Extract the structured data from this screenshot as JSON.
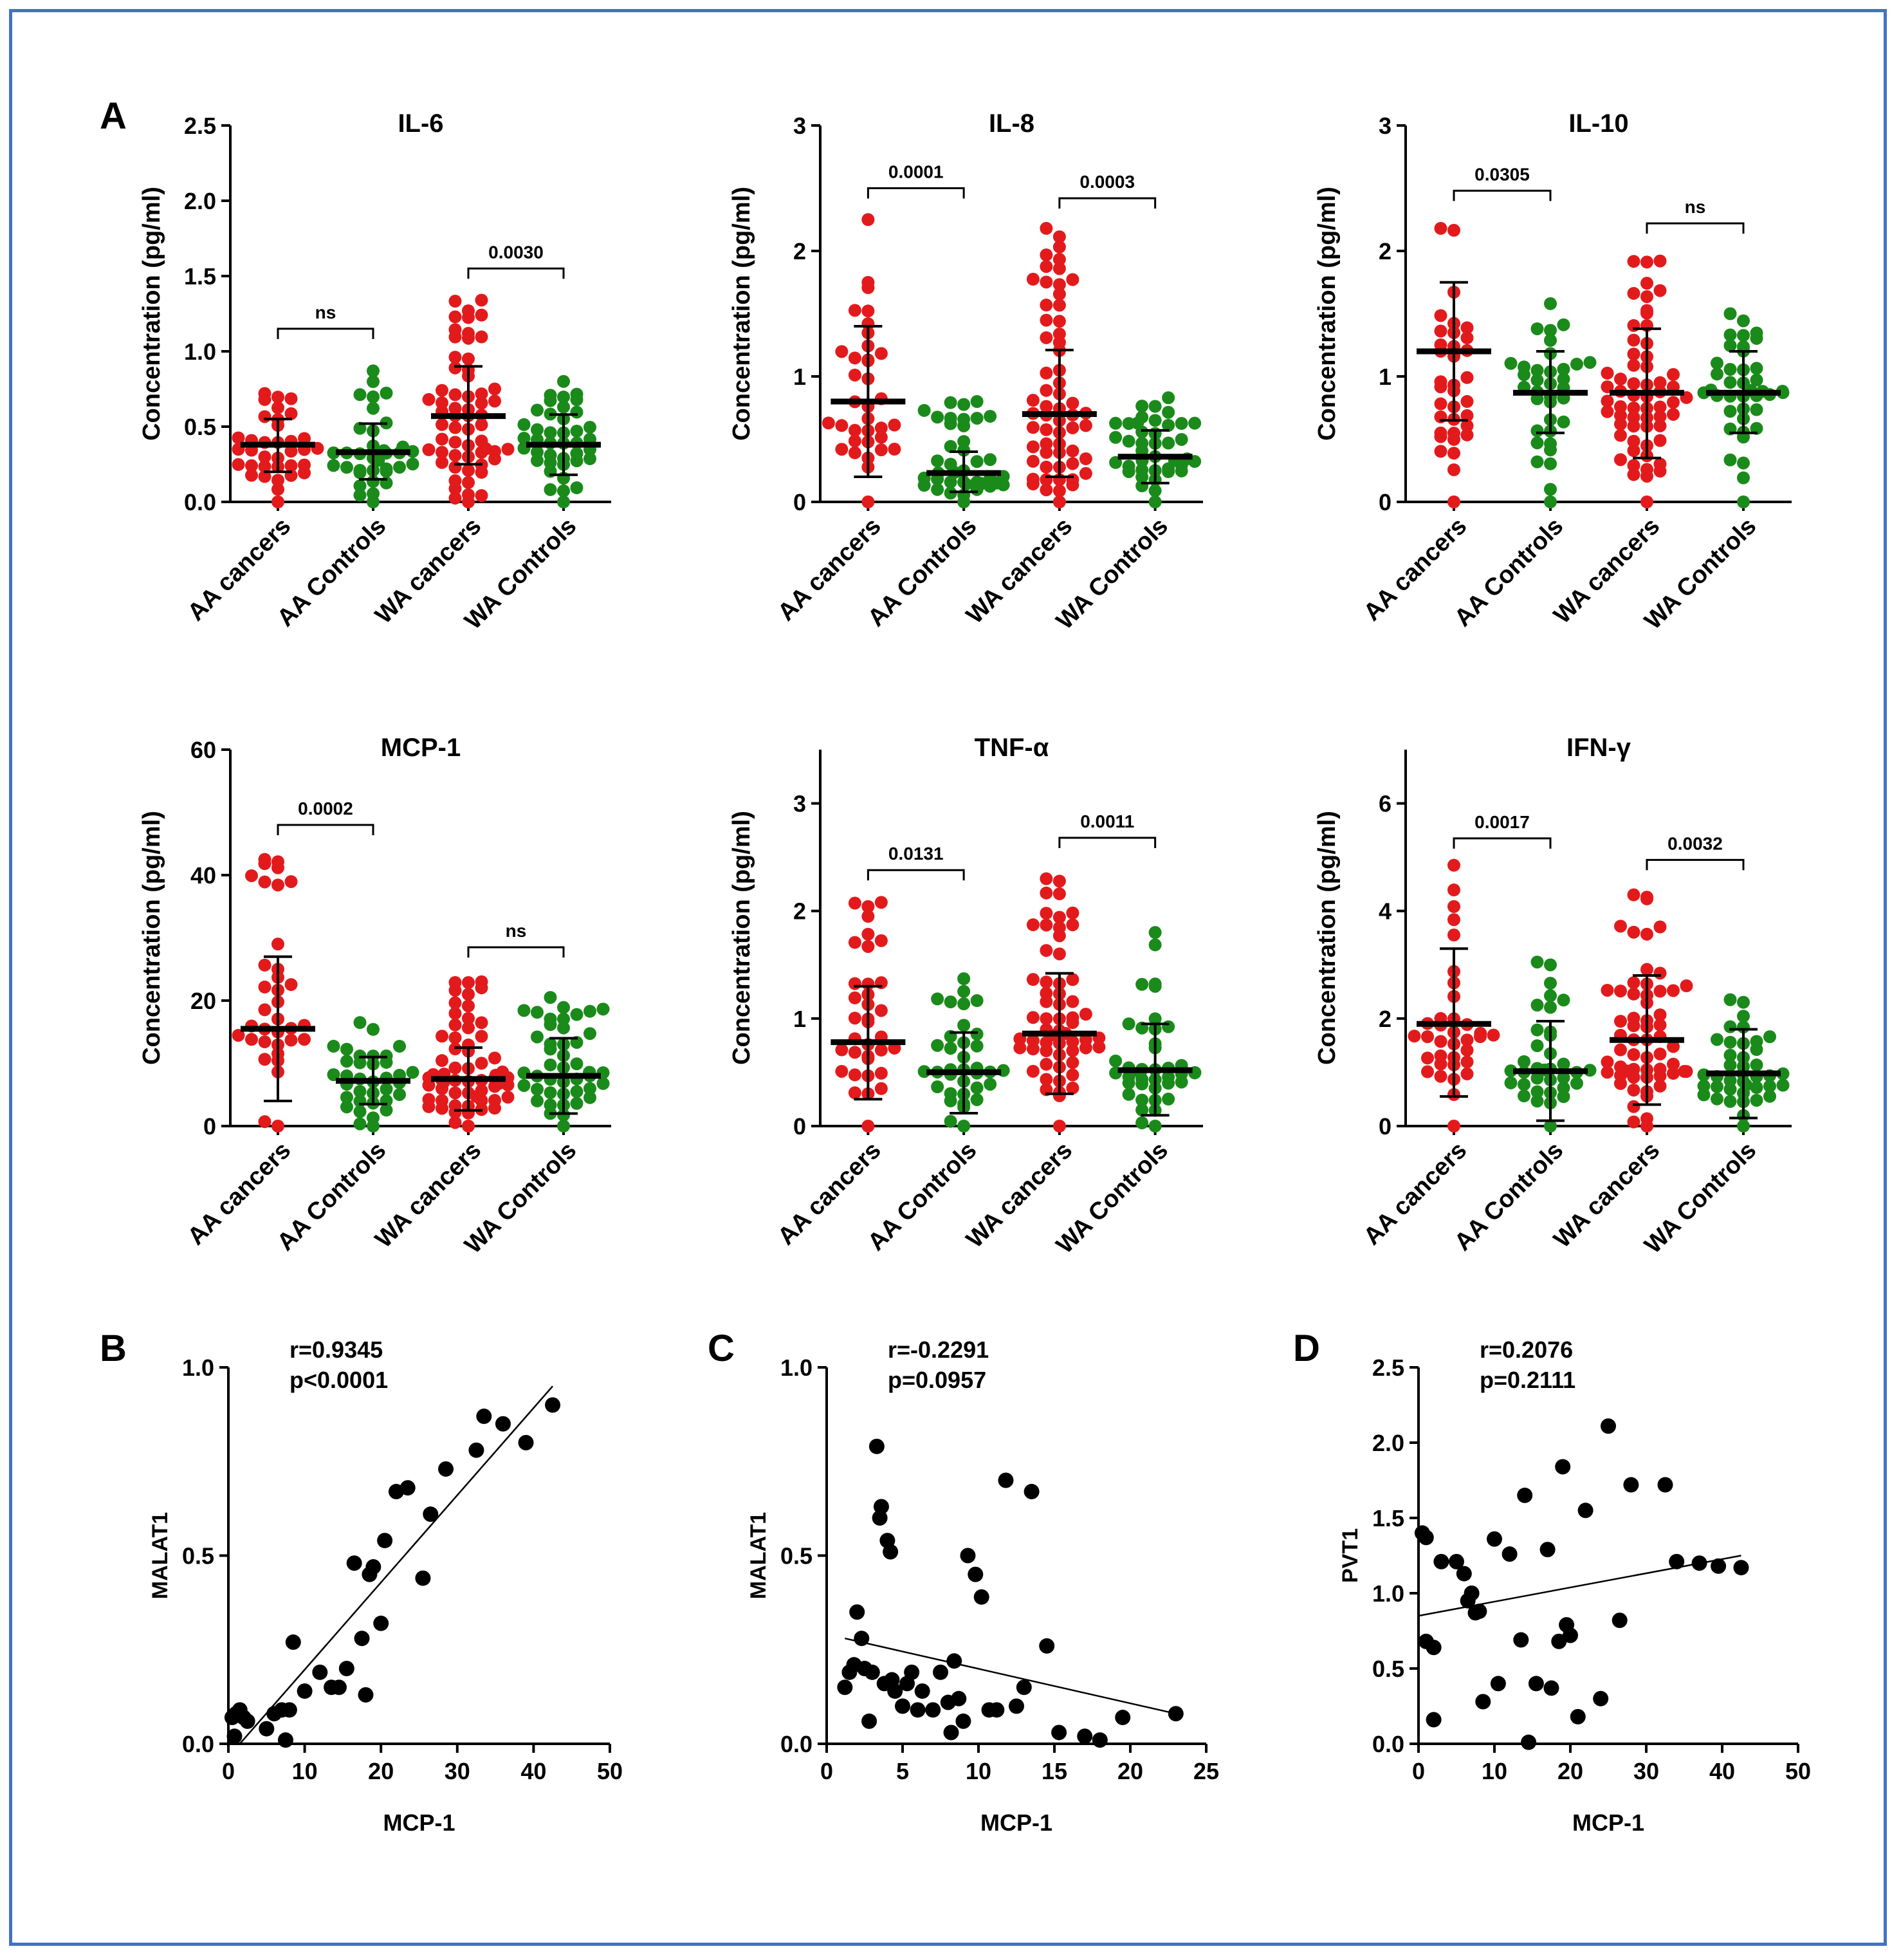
{
  "figure": {
    "panel_letters": [
      "A",
      "B",
      "C",
      "D"
    ],
    "colors": {
      "cancer": "#e31a1c",
      "control": "#1a8a1a",
      "axis": "#000000",
      "frame": "#4472c4"
    }
  },
  "chart_data": [
    {
      "type": "scatter",
      "panel": "A",
      "title": "IL-6",
      "ylabel": "Concentration (pg/ml)",
      "categories": [
        "AA cancers",
        "AA Controls",
        "WA cancers",
        "WA Controls"
      ],
      "ylim": [
        0,
        2.5
      ],
      "yticks": [
        0.0,
        0.5,
        1.0,
        1.5,
        2.0,
        2.5
      ],
      "ytick_labels": [
        "0.0",
        "0.5",
        "1.0",
        "1.5",
        "2.0",
        "2.5"
      ],
      "means": [
        0.38,
        0.33,
        0.57,
        0.38
      ],
      "sd_low": [
        0.2,
        0.15,
        0.25,
        0.18
      ],
      "sd_high": [
        0.55,
        0.52,
        0.9,
        0.58
      ],
      "counts": [
        35,
        35,
        60,
        40
      ],
      "max_values": [
        0.72,
        0.87,
        1.34,
        0.8
      ],
      "comparisons": [
        {
          "from": 0,
          "to": 1,
          "label": "ns",
          "y": 1.15
        },
        {
          "from": 2,
          "to": 3,
          "label": "0.0030",
          "y": 1.55
        }
      ]
    },
    {
      "type": "scatter",
      "panel": "A",
      "title": "IL-8",
      "ylabel": "Concentration (pg/ml)",
      "categories": [
        "AA cancers",
        "AA Controls",
        "WA cancers",
        "WA Controls"
      ],
      "ylim": [
        0,
        3
      ],
      "yticks": [
        0,
        1,
        2,
        3
      ],
      "ytick_labels": [
        "0",
        "1",
        "2",
        "3"
      ],
      "means": [
        0.8,
        0.23,
        0.7,
        0.36
      ],
      "sd_low": [
        0.2,
        0.08,
        0.2,
        0.15
      ],
      "sd_high": [
        1.4,
        0.4,
        1.21,
        0.57
      ],
      "counts": [
        35,
        40,
        60,
        40
      ],
      "max_values": [
        2.25,
        0.8,
        2.18,
        0.83
      ],
      "comparisons": [
        {
          "from": 0,
          "to": 1,
          "label": "0.0001",
          "y": 2.5
        },
        {
          "from": 2,
          "to": 3,
          "label": "0.0003",
          "y": 2.42
        }
      ]
    },
    {
      "type": "scatter",
      "panel": "A",
      "title": "IL-10",
      "ylabel": "Concentration (pg/ml)",
      "categories": [
        "AA cancers",
        "AA Controls",
        "WA cancers",
        "WA Controls"
      ],
      "ylim": [
        0,
        3
      ],
      "yticks": [
        0,
        1,
        2,
        3
      ],
      "ytick_labels": [
        "0",
        "1",
        "2",
        "3"
      ],
      "means": [
        1.2,
        0.87,
        0.87,
        0.87
      ],
      "sd_low": [
        0.65,
        0.55,
        0.35,
        0.55
      ],
      "sd_high": [
        1.75,
        1.2,
        1.38,
        1.2
      ],
      "counts": [
        35,
        35,
        60,
        40
      ],
      "max_values": [
        2.18,
        1.58,
        1.92,
        1.5
      ],
      "comparisons": [
        {
          "from": 0,
          "to": 1,
          "label": "0.0305",
          "y": 2.48
        },
        {
          "from": 2,
          "to": 3,
          "label": "ns",
          "y": 2.22
        }
      ]
    },
    {
      "type": "scatter",
      "panel": "A",
      "title": "MCP-1",
      "ylabel": "Concentration (pg/ml)",
      "categories": [
        "AA cancers",
        "AA Controls",
        "WA cancers",
        "WA Controls"
      ],
      "ylim": [
        0,
        60
      ],
      "yticks": [
        0,
        20,
        40,
        60
      ],
      "ytick_labels": [
        "0",
        "20",
        "40",
        "60"
      ],
      "means": [
        15.5,
        7.2,
        7.5,
        8.0
      ],
      "sd_low": [
        4.0,
        3.5,
        2.5,
        2.0
      ],
      "sd_high": [
        27.0,
        11.0,
        12.5,
        14.0
      ],
      "counts": [
        35,
        35,
        60,
        45
      ],
      "max_values": [
        42.5,
        16.5,
        23.0,
        20.5
      ],
      "comparisons": [
        {
          "from": 0,
          "to": 1,
          "label": "0.0002",
          "y": 48.0
        },
        {
          "from": 2,
          "to": 3,
          "label": "ns",
          "y": 28.5
        }
      ]
    },
    {
      "type": "scatter",
      "panel": "A",
      "title": "TNF-α",
      "ylabel": "Concentration (pg/ml)",
      "categories": [
        "AA cancers",
        "AA Controls",
        "WA cancers",
        "WA Controls"
      ],
      "ylim": [
        0,
        3.5
      ],
      "yticks": [
        0,
        1,
        2,
        3
      ],
      "ytick_labels": [
        "0",
        "1",
        "2",
        "3"
      ],
      "means": [
        0.78,
        0.5,
        0.86,
        0.52
      ],
      "sd_low": [
        0.25,
        0.12,
        0.3,
        0.1
      ],
      "sd_high": [
        1.3,
        0.87,
        1.42,
        0.95
      ],
      "counts": [
        35,
        35,
        60,
        40
      ],
      "max_values": [
        2.08,
        1.37,
        2.3,
        1.8
      ],
      "comparisons": [
        {
          "from": 0,
          "to": 1,
          "label": "0.0131",
          "y": 2.38
        },
        {
          "from": 2,
          "to": 3,
          "label": "0.0011",
          "y": 2.68
        }
      ]
    },
    {
      "type": "scatter",
      "panel": "A",
      "title": "IFN-γ",
      "ylabel": "Concentration (pg/ml)",
      "categories": [
        "AA cancers",
        "AA Controls",
        "WA cancers",
        "WA Controls"
      ],
      "ylim": [
        0,
        7
      ],
      "yticks": [
        0,
        2,
        4,
        6
      ],
      "ytick_labels": [
        "0",
        "2",
        "4",
        "6"
      ],
      "means": [
        1.9,
        1.02,
        1.6,
        0.98
      ],
      "sd_low": [
        0.55,
        0.1,
        0.4,
        0.15
      ],
      "sd_high": [
        3.3,
        1.95,
        2.8,
        1.8
      ],
      "counts": [
        35,
        35,
        60,
        40
      ],
      "max_values": [
        4.85,
        3.05,
        4.3,
        2.35
      ],
      "comparisons": [
        {
          "from": 0,
          "to": 1,
          "label": "0.0017",
          "y": 5.35
        },
        {
          "from": 2,
          "to": 3,
          "label": "0.0032",
          "y": 4.95
        }
      ]
    },
    {
      "type": "scatter",
      "panel": "B",
      "xlabel": "MCP-1",
      "ylabel": "MALAT1",
      "xlim": [
        0,
        50
      ],
      "ylim": [
        0,
        1.0
      ],
      "xticks": [
        0,
        10,
        20,
        30,
        40,
        50
      ],
      "xtick_labels": [
        "0",
        "10",
        "20",
        "30",
        "40",
        "50"
      ],
      "yticks": [
        0.0,
        0.5,
        1.0
      ],
      "ytick_labels": [
        "0.0",
        "0.5",
        "1.0"
      ],
      "annotation": [
        "r=0.9345",
        "p<0.0001"
      ],
      "fit": {
        "x": [
          1.5,
          42.5
        ],
        "y": [
          0.0,
          0.95
        ]
      },
      "points": [
        [
          0.5,
          0.07
        ],
        [
          1,
          0.08
        ],
        [
          1.5,
          0.09
        ],
        [
          2,
          0.07
        ],
        [
          2.5,
          0.06
        ],
        [
          0.8,
          0.02
        ],
        [
          5,
          0.04
        ],
        [
          6,
          0.08
        ],
        [
          7,
          0.09
        ],
        [
          7.5,
          0.01
        ],
        [
          8,
          0.09
        ],
        [
          8.5,
          0.27
        ],
        [
          10,
          0.14
        ],
        [
          12,
          0.19
        ],
        [
          13.5,
          0.15
        ],
        [
          14.5,
          0.15
        ],
        [
          15.5,
          0.2
        ],
        [
          16.5,
          0.48
        ],
        [
          17.5,
          0.28
        ],
        [
          18,
          0.13
        ],
        [
          18.5,
          0.45
        ],
        [
          19,
          0.47
        ],
        [
          20,
          0.32
        ],
        [
          20.5,
          0.54
        ],
        [
          22,
          0.67
        ],
        [
          23.5,
          0.68
        ],
        [
          25.5,
          0.44
        ],
        [
          26.5,
          0.61
        ],
        [
          28.5,
          0.73
        ],
        [
          32.5,
          0.78
        ],
        [
          33.5,
          0.87
        ],
        [
          36,
          0.85
        ],
        [
          39,
          0.8
        ],
        [
          42.5,
          0.9
        ]
      ]
    },
    {
      "type": "scatter",
      "panel": "C",
      "xlabel": "MCP-1",
      "ylabel": "MALAT1",
      "xlim": [
        0,
        25
      ],
      "ylim": [
        0,
        1.0
      ],
      "xticks": [
        0,
        5,
        10,
        15,
        20,
        25
      ],
      "xtick_labels": [
        "0",
        "5",
        "10",
        "15",
        "20",
        "25"
      ],
      "yticks": [
        0.0,
        0.5,
        1.0
      ],
      "ytick_labels": [
        "0.0",
        "0.5",
        "1.0"
      ],
      "annotation": [
        "r=-0.2291",
        "p=0.0957"
      ],
      "fit": {
        "x": [
          1.2,
          23
        ],
        "y": [
          0.28,
          0.08
        ]
      },
      "points": [
        [
          1.2,
          0.15
        ],
        [
          1.5,
          0.19
        ],
        [
          1.8,
          0.21
        ],
        [
          2,
          0.35
        ],
        [
          2.3,
          0.28
        ],
        [
          2.5,
          0.2
        ],
        [
          2.8,
          0.06
        ],
        [
          3,
          0.19
        ],
        [
          3.3,
          0.79
        ],
        [
          3.5,
          0.6
        ],
        [
          3.6,
          0.63
        ],
        [
          3.8,
          0.16
        ],
        [
          4,
          0.54
        ],
        [
          4.2,
          0.51
        ],
        [
          4.3,
          0.17
        ],
        [
          4.5,
          0.14
        ],
        [
          5,
          0.1
        ],
        [
          5.3,
          0.16
        ],
        [
          5.6,
          0.19
        ],
        [
          6,
          0.09
        ],
        [
          6.3,
          0.14
        ],
        [
          7,
          0.09
        ],
        [
          7.5,
          0.19
        ],
        [
          8,
          0.11
        ],
        [
          8.2,
          0.03
        ],
        [
          8.4,
          0.22
        ],
        [
          8.7,
          0.12
        ],
        [
          9,
          0.06
        ],
        [
          9.3,
          0.5
        ],
        [
          9.8,
          0.45
        ],
        [
          10.2,
          0.39
        ],
        [
          10.7,
          0.09
        ],
        [
          11.2,
          0.09
        ],
        [
          11.8,
          0.7
        ],
        [
          12.5,
          0.1
        ],
        [
          13,
          0.15
        ],
        [
          13.5,
          0.67
        ],
        [
          14.5,
          0.26
        ],
        [
          15.3,
          0.03
        ],
        [
          17,
          0.02
        ],
        [
          18,
          0.01
        ],
        [
          19.5,
          0.07
        ],
        [
          23,
          0.08
        ]
      ]
    },
    {
      "type": "scatter",
      "panel": "D",
      "xlabel": "MCP-1",
      "ylabel": "PVT1",
      "xlim": [
        0,
        50
      ],
      "ylim": [
        0,
        2.5
      ],
      "xticks": [
        0,
        10,
        20,
        30,
        40,
        50
      ],
      "xtick_labels": [
        "0",
        "10",
        "20",
        "30",
        "40",
        "50"
      ],
      "yticks": [
        0.0,
        0.5,
        1.0,
        1.5,
        2.0,
        2.5
      ],
      "ytick_labels": [
        "0.0",
        "0.5",
        "1.0",
        "1.5",
        "2.0",
        "2.5"
      ],
      "annotation": [
        "r=0.2076",
        "p=0.2111"
      ],
      "fit": {
        "x": [
          0,
          42.5
        ],
        "y": [
          0.85,
          1.25
        ]
      },
      "points": [
        [
          0.5,
          1.4
        ],
        [
          1,
          1.37
        ],
        [
          1,
          0.68
        ],
        [
          2,
          0.64
        ],
        [
          2,
          0.16
        ],
        [
          3,
          1.21
        ],
        [
          5,
          1.21
        ],
        [
          6,
          1.13
        ],
        [
          6.5,
          0.95
        ],
        [
          7,
          1.0
        ],
        [
          7.5,
          0.87
        ],
        [
          8,
          0.88
        ],
        [
          8.5,
          0.28
        ],
        [
          10,
          1.36
        ],
        [
          10.5,
          0.4
        ],
        [
          12,
          1.26
        ],
        [
          13.5,
          0.69
        ],
        [
          14,
          1.65
        ],
        [
          14.5,
          0.01
        ],
        [
          15.5,
          0.4
        ],
        [
          17,
          1.29
        ],
        [
          17.5,
          0.37
        ],
        [
          18.5,
          0.68
        ],
        [
          19,
          1.84
        ],
        [
          19.5,
          0.79
        ],
        [
          20,
          0.72
        ],
        [
          21,
          0.18
        ],
        [
          22,
          1.55
        ],
        [
          24,
          0.3
        ],
        [
          25,
          2.11
        ],
        [
          26.5,
          0.82
        ],
        [
          28,
          1.72
        ],
        [
          32.5,
          1.72
        ],
        [
          34,
          1.21
        ],
        [
          37,
          1.2
        ],
        [
          39.5,
          1.18
        ],
        [
          42.5,
          1.17
        ]
      ]
    }
  ]
}
